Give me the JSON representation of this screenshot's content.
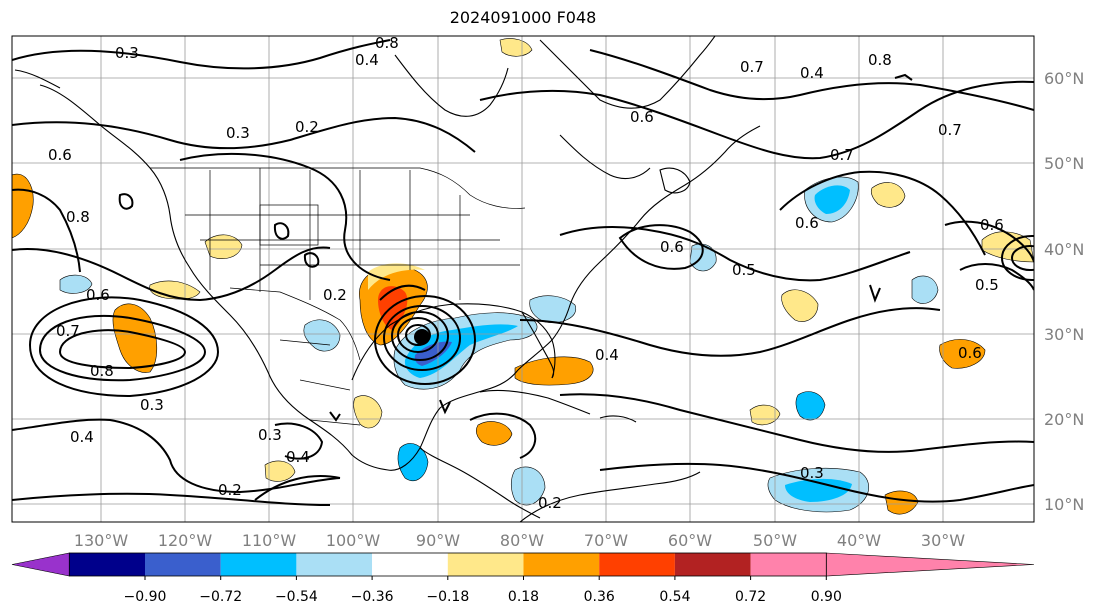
{
  "title": "2024091000 F048",
  "map": {
    "longitude_labels": [
      "130°W",
      "120°W",
      "110°W",
      "100°W",
      "90°W",
      "80°W",
      "70°W",
      "60°W",
      "50°W",
      "40°W",
      "30°W"
    ],
    "latitude_labels": [
      "60°N",
      "50°N",
      "40°N",
      "30°N",
      "20°N",
      "10°N"
    ],
    "contour_labels": [
      "0.3",
      "0.3",
      "0.2",
      "0.4",
      "0.8",
      "0.6",
      "0.8",
      "0.7",
      "0.8",
      "0.7",
      "0.6",
      "0.6",
      "0.4",
      "0.7",
      "0.5",
      "0.6",
      "0.6",
      "0.5",
      "0.4",
      "0.7",
      "0.8",
      "0.6",
      "0.2",
      "0.3",
      "0.4",
      "0.3",
      "0.2",
      "0.4",
      "0.3",
      "0.6",
      "0.2"
    ],
    "storm_center_icon": "storm-center-dot"
  },
  "colorbar": {
    "tick_labels": [
      "−0.90",
      "−0.72",
      "−0.54",
      "−0.36",
      "−0.18",
      "0.18",
      "0.36",
      "0.54",
      "0.72",
      "0.90"
    ],
    "colors": [
      "#9932cc",
      "#00008b",
      "#3a5fcd",
      "#00bfff",
      "#aadff5",
      "#ffffff",
      "#ffe88a",
      "#ffa000",
      "#ff4000",
      "#b22222",
      "#ff82ab"
    ]
  }
}
